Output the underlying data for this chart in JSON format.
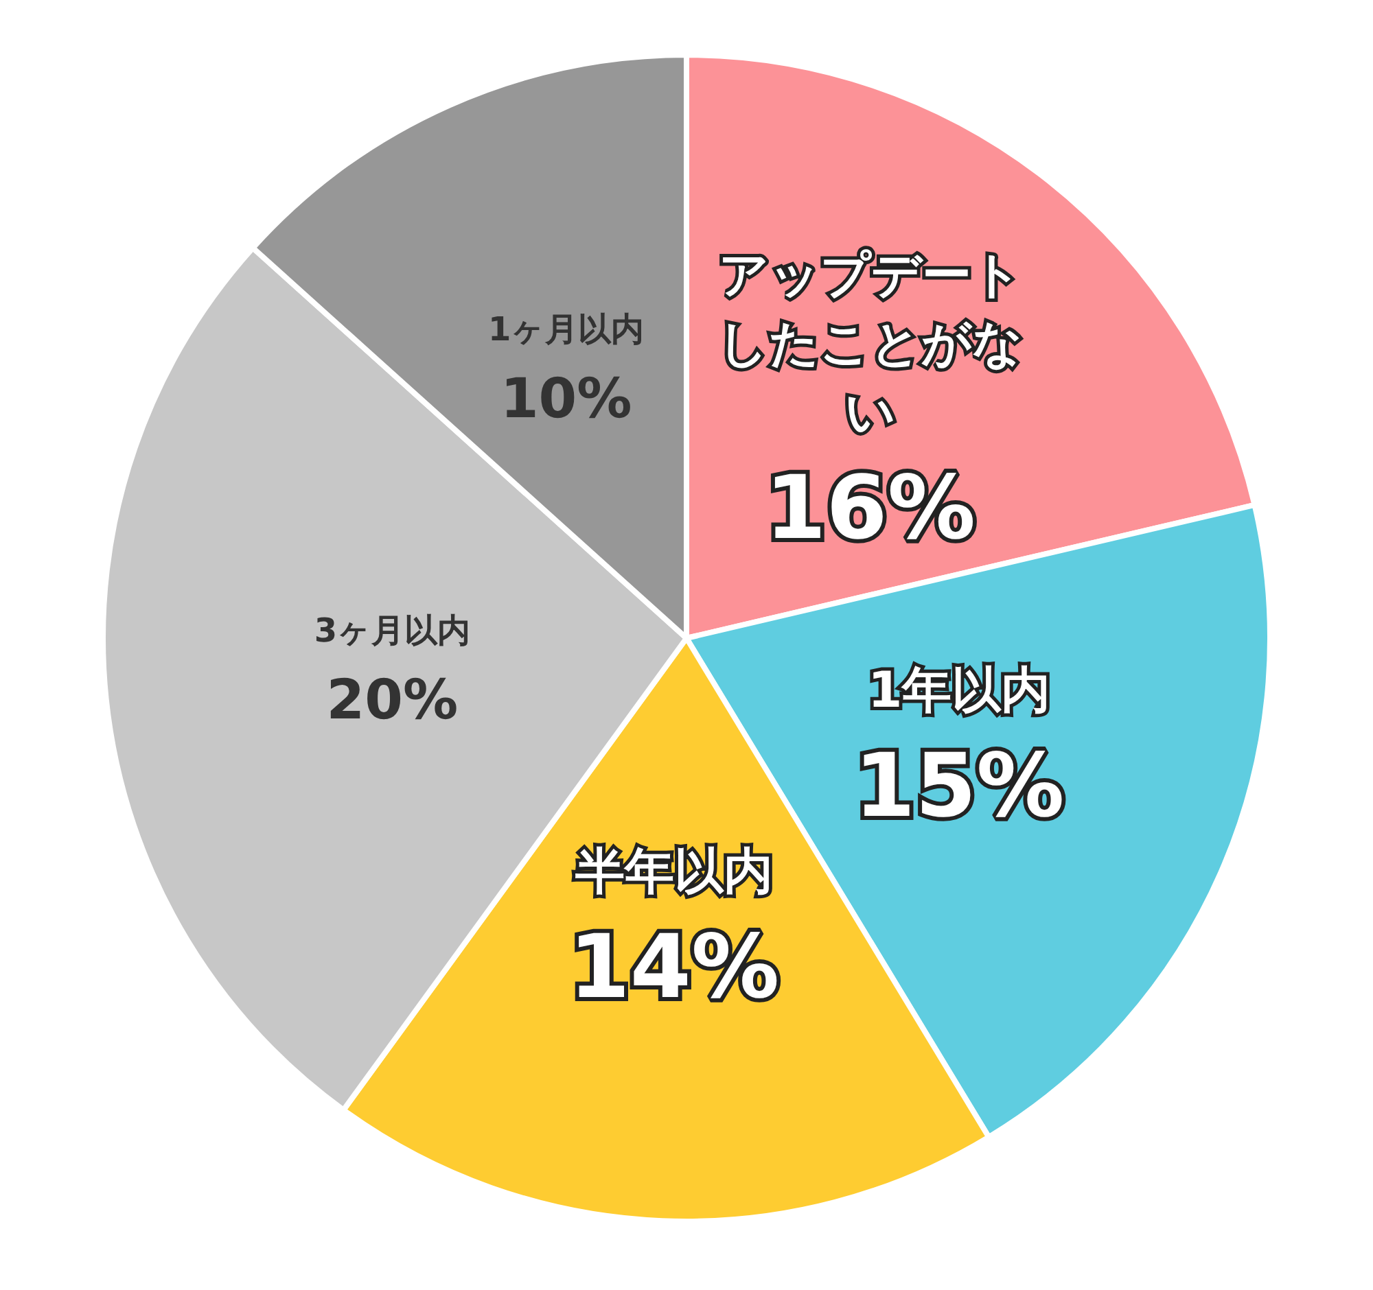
{
  "chart_data": {
    "type": "pie",
    "categories": [
      "アップデートしたことがない",
      "1年以内",
      "半年以内",
      "3ヶ月以内",
      "1ヶ月以内"
    ],
    "values": [
      16,
      15,
      14,
      20,
      10
    ],
    "colors": [
      "#fc9297",
      "#5fcde0",
      "#fecc31",
      "#c7c7c7",
      "#979797"
    ],
    "value_labels": [
      "16%",
      "15%",
      "14%",
      "20%",
      "10%"
    ],
    "legend": false
  }
}
